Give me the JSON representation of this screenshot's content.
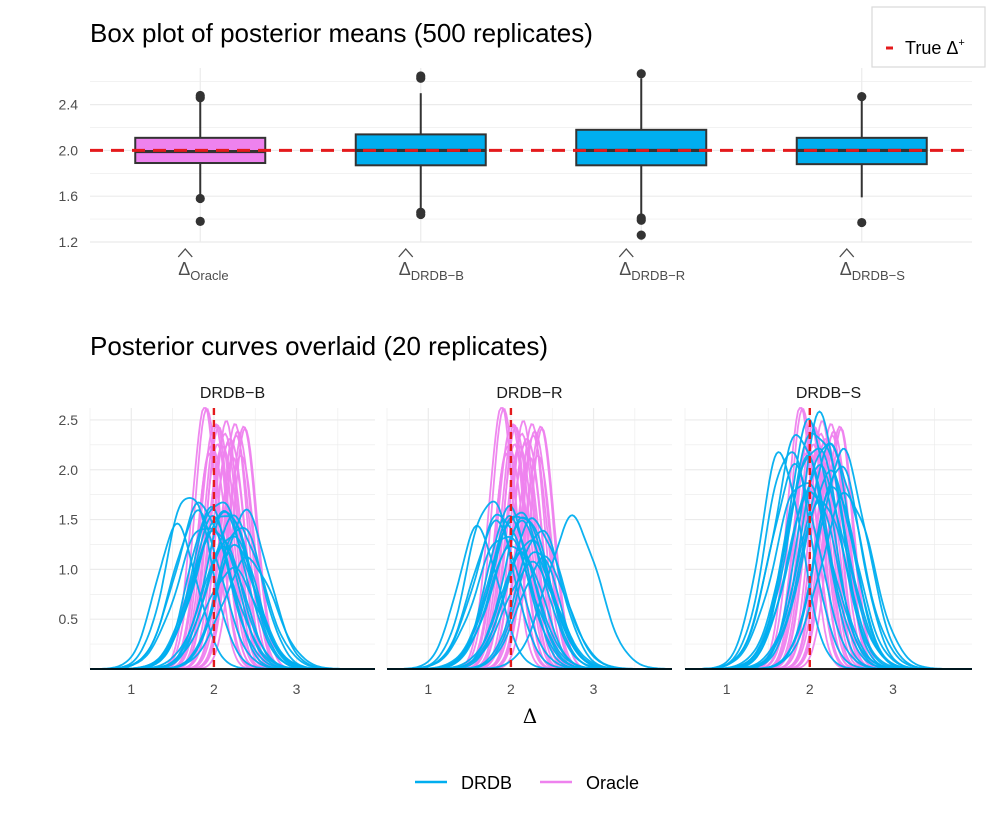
{
  "colors": {
    "oracle": "#EE82EE",
    "drdb": "#00AEEF",
    "truth": "#E41A1C",
    "box_edge": "#333333",
    "grid": "#EBEBEB"
  },
  "legend_top": {
    "label_prefix": "True Δ",
    "label_sup": "+"
  },
  "legend_bottom": {
    "items": [
      {
        "label": "DRDB",
        "color": "#00AEEF"
      },
      {
        "label": "Oracle",
        "color": "#EE82EE"
      }
    ]
  },
  "chart_data": [
    {
      "type": "box",
      "title": "Box plot of posterior means (500 replicates)",
      "xlabel": "",
      "ylabel": "",
      "ylim": [
        1.2,
        2.72
      ],
      "yticks": [
        "1.2",
        "1.6",
        "2.0",
        "2.4"
      ],
      "reference_line": {
        "y": 2.0,
        "label": "True Δ+"
      },
      "grid": true,
      "boxes": [
        {
          "hat": "Δ",
          "sub": "Oracle",
          "fill": "#EE82EE",
          "q1": 1.89,
          "median": 1.99,
          "q3": 2.11,
          "whisker_low": 1.59,
          "whisker_high": 2.45,
          "outliers": [
            2.48,
            2.46,
            1.58,
            1.38
          ]
        },
        {
          "hat": "Δ",
          "sub": "DRDB−B",
          "fill": "#00AEEF",
          "q1": 1.87,
          "median": 2.0,
          "q3": 2.14,
          "whisker_low": 1.48,
          "whisker_high": 2.5,
          "outliers": [
            2.65,
            2.63,
            1.46,
            1.44
          ]
        },
        {
          "hat": "Δ",
          "sub": "DRDB−R",
          "fill": "#00AEEF",
          "q1": 1.87,
          "median": 2.0,
          "q3": 2.18,
          "whisker_low": 1.42,
          "whisker_high": 2.63,
          "outliers": [
            2.67,
            1.41,
            1.39,
            1.26
          ]
        },
        {
          "hat": "Δ",
          "sub": "DRDB−S",
          "fill": "#00AEEF",
          "q1": 1.88,
          "median": 2.0,
          "q3": 2.11,
          "whisker_low": 1.59,
          "whisker_high": 2.45,
          "outliers": [
            2.47,
            1.37
          ]
        }
      ]
    },
    {
      "type": "line",
      "title": "Posterior curves overlaid (20 replicates)",
      "xlabel": "Δ",
      "ylabel": "",
      "xlim": [
        0.5,
        3.95
      ],
      "ylim": [
        0,
        2.62
      ],
      "xticks": [
        "1",
        "2",
        "3"
      ],
      "yticks": [
        "0.5",
        "1.0",
        "1.5",
        "2.0",
        "2.5"
      ],
      "reference_line": {
        "x": 2.0
      },
      "grid": true,
      "facets": [
        {
          "label": "DRDB−B",
          "series": [
            {
              "name": "Oracle",
              "curves": [
                {
                  "mean": 1.88,
                  "peak": 2.6
                },
                {
                  "mean": 1.92,
                  "peak": 2.55
                },
                {
                  "mean": 1.98,
                  "peak": 2.3
                },
                {
                  "mean": 2.0,
                  "peak": 2.5
                },
                {
                  "mean": 2.03,
                  "peak": 2.4
                },
                {
                  "mean": 2.05,
                  "peak": 2.2
                },
                {
                  "mean": 2.07,
                  "peak": 2.45
                },
                {
                  "mean": 2.1,
                  "peak": 2.3
                },
                {
                  "mean": 2.12,
                  "peak": 2.35
                },
                {
                  "mean": 2.15,
                  "peak": 2.42
                },
                {
                  "mean": 2.18,
                  "peak": 2.25
                },
                {
                  "mean": 2.2,
                  "peak": 2.38
                },
                {
                  "mean": 2.22,
                  "peak": 2.15
                },
                {
                  "mean": 2.25,
                  "peak": 2.4
                },
                {
                  "mean": 2.28,
                  "peak": 2.3
                },
                {
                  "mean": 2.3,
                  "peak": 2.43
                },
                {
                  "mean": 2.32,
                  "peak": 2.2
                },
                {
                  "mean": 2.35,
                  "peak": 2.4
                },
                {
                  "mean": 2.38,
                  "peak": 2.35
                },
                {
                  "mean": 1.95,
                  "peak": 2.1
                }
              ]
            },
            {
              "name": "DRDB",
              "curves": [
                {
                  "mean": 1.55,
                  "peak": 1.42
                },
                {
                  "mean": 1.7,
                  "peak": 1.77
                },
                {
                  "mean": 1.8,
                  "peak": 1.55
                },
                {
                  "mean": 1.85,
                  "peak": 1.65
                },
                {
                  "mean": 1.9,
                  "peak": 1.45
                },
                {
                  "mean": 1.95,
                  "peak": 1.6
                },
                {
                  "mean": 2.0,
                  "peak": 1.5
                },
                {
                  "mean": 2.03,
                  "peak": 1.4
                },
                {
                  "mean": 2.06,
                  "peak": 1.7
                },
                {
                  "mean": 2.1,
                  "peak": 1.55
                },
                {
                  "mean": 2.13,
                  "peak": 1.2
                },
                {
                  "mean": 2.17,
                  "peak": 1.6
                },
                {
                  "mean": 2.2,
                  "peak": 1.35
                },
                {
                  "mean": 2.22,
                  "peak": 1.0
                },
                {
                  "mean": 2.25,
                  "peak": 1.5
                },
                {
                  "mean": 2.28,
                  "peak": 1.25
                },
                {
                  "mean": 2.32,
                  "peak": 1.45
                },
                {
                  "mean": 2.38,
                  "peak": 1.56
                },
                {
                  "mean": 2.42,
                  "peak": 1.1
                },
                {
                  "mean": 2.12,
                  "peak": 1.58
                }
              ]
            }
          ]
        },
        {
          "label": "DRDB−R",
          "series": [
            {
              "name": "Oracle",
              "curves": [
                {
                  "mean": 1.88,
                  "peak": 2.6
                },
                {
                  "mean": 1.92,
                  "peak": 2.55
                },
                {
                  "mean": 1.98,
                  "peak": 2.3
                },
                {
                  "mean": 2.0,
                  "peak": 2.5
                },
                {
                  "mean": 2.03,
                  "peak": 2.4
                },
                {
                  "mean": 2.05,
                  "peak": 2.2
                },
                {
                  "mean": 2.07,
                  "peak": 2.45
                },
                {
                  "mean": 2.1,
                  "peak": 2.3
                },
                {
                  "mean": 2.12,
                  "peak": 2.35
                },
                {
                  "mean": 2.15,
                  "peak": 2.42
                },
                {
                  "mean": 2.18,
                  "peak": 2.25
                },
                {
                  "mean": 2.2,
                  "peak": 2.38
                },
                {
                  "mean": 2.22,
                  "peak": 2.15
                },
                {
                  "mean": 2.25,
                  "peak": 2.4
                },
                {
                  "mean": 2.28,
                  "peak": 2.3
                },
                {
                  "mean": 2.3,
                  "peak": 2.43
                },
                {
                  "mean": 2.32,
                  "peak": 2.2
                },
                {
                  "mean": 2.35,
                  "peak": 2.4
                },
                {
                  "mean": 2.38,
                  "peak": 2.35
                },
                {
                  "mean": 1.95,
                  "peak": 2.1
                }
              ]
            },
            {
              "name": "DRDB",
              "curves": [
                {
                  "mean": 1.6,
                  "peak": 1.4
                },
                {
                  "mean": 1.75,
                  "peak": 1.7
                },
                {
                  "mean": 1.82,
                  "peak": 1.45
                },
                {
                  "mean": 1.88,
                  "peak": 1.55
                },
                {
                  "mean": 1.92,
                  "peak": 1.35
                },
                {
                  "mean": 1.97,
                  "peak": 1.6
                },
                {
                  "mean": 2.0,
                  "peak": 1.5
                },
                {
                  "mean": 2.04,
                  "peak": 1.25
                },
                {
                  "mean": 2.08,
                  "peak": 1.58
                },
                {
                  "mean": 2.12,
                  "peak": 1.45
                },
                {
                  "mean": 2.15,
                  "peak": 1.15
                },
                {
                  "mean": 2.18,
                  "peak": 1.55
                },
                {
                  "mean": 2.22,
                  "peak": 1.3
                },
                {
                  "mean": 2.25,
                  "peak": 1.05
                },
                {
                  "mean": 2.28,
                  "peak": 1.48
                },
                {
                  "mean": 2.32,
                  "peak": 1.2
                },
                {
                  "mean": 2.35,
                  "peak": 1.4
                },
                {
                  "mean": 2.4,
                  "peak": 1.1
                },
                {
                  "mean": 2.75,
                  "peak": 1.5
                },
                {
                  "mean": 2.1,
                  "peak": 1.57
                }
              ]
            }
          ]
        },
        {
          "label": "DRDB−S",
          "series": [
            {
              "name": "Oracle",
              "curves": [
                {
                  "mean": 1.88,
                  "peak": 2.6
                },
                {
                  "mean": 1.92,
                  "peak": 2.55
                },
                {
                  "mean": 1.98,
                  "peak": 2.3
                },
                {
                  "mean": 2.0,
                  "peak": 2.5
                },
                {
                  "mean": 2.03,
                  "peak": 2.4
                },
                {
                  "mean": 2.05,
                  "peak": 2.2
                },
                {
                  "mean": 2.07,
                  "peak": 2.45
                },
                {
                  "mean": 2.1,
                  "peak": 2.3
                },
                {
                  "mean": 2.12,
                  "peak": 2.35
                },
                {
                  "mean": 2.15,
                  "peak": 2.42
                },
                {
                  "mean": 2.18,
                  "peak": 2.25
                },
                {
                  "mean": 2.2,
                  "peak": 2.38
                },
                {
                  "mean": 2.22,
                  "peak": 2.15
                },
                {
                  "mean": 2.25,
                  "peak": 2.4
                },
                {
                  "mean": 2.28,
                  "peak": 2.3
                },
                {
                  "mean": 2.3,
                  "peak": 2.43
                },
                {
                  "mean": 2.32,
                  "peak": 2.2
                },
                {
                  "mean": 2.35,
                  "peak": 2.4
                },
                {
                  "mean": 2.38,
                  "peak": 2.35
                },
                {
                  "mean": 1.95,
                  "peak": 2.1
                }
              ]
            },
            {
              "name": "DRDB",
              "curves": [
                {
                  "mean": 1.65,
                  "peak": 2.15
                },
                {
                  "mean": 1.75,
                  "peak": 2.2
                },
                {
                  "mean": 1.82,
                  "peak": 2.0
                },
                {
                  "mean": 1.88,
                  "peak": 2.35
                },
                {
                  "mean": 1.92,
                  "peak": 1.9
                },
                {
                  "mean": 1.96,
                  "peak": 2.1
                },
                {
                  "mean": 2.0,
                  "peak": 2.45
                },
                {
                  "mean": 2.03,
                  "peak": 1.8
                },
                {
                  "mean": 2.06,
                  "peak": 2.25
                },
                {
                  "mean": 2.1,
                  "peak": 2.0
                },
                {
                  "mean": 2.13,
                  "peak": 2.52
                },
                {
                  "mean": 2.16,
                  "peak": 1.7
                },
                {
                  "mean": 2.2,
                  "peak": 2.3
                },
                {
                  "mean": 2.23,
                  "peak": 1.95
                },
                {
                  "mean": 2.26,
                  "peak": 2.2
                },
                {
                  "mean": 2.3,
                  "peak": 1.85
                },
                {
                  "mean": 2.35,
                  "peak": 2.05
                },
                {
                  "mean": 2.4,
                  "peak": 2.15
                },
                {
                  "mean": 2.45,
                  "peak": 1.75
                },
                {
                  "mean": 2.08,
                  "peak": 2.4
                }
              ]
            }
          ]
        }
      ]
    }
  ]
}
